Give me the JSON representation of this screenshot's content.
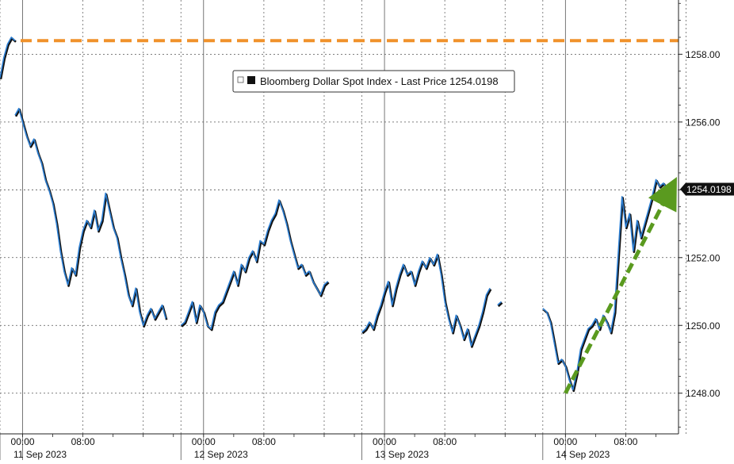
{
  "chart_data": {
    "type": "line",
    "legend": {
      "label": "Bloomberg Dollar Spot Index - Last Price 1254.0198",
      "placement": "top-center"
    },
    "last_price_label": "1254.0198",
    "y_axis": {
      "ticks": [
        1248.0,
        1250.0,
        1252.0,
        1254.0,
        1256.0,
        1258.0
      ],
      "tick_labels": [
        "1248.00",
        "1250.00",
        "1252.00",
        "1254.00",
        "1256.00",
        "1258.00"
      ],
      "ylim": [
        1246.8,
        1259.6
      ],
      "position": "right"
    },
    "x_axis": {
      "time_labels": [
        "00:00",
        "08:00",
        "00:00",
        "08:00",
        "00:00",
        "08:00",
        "00:00",
        "08:00"
      ],
      "date_labels": [
        "11 Sep 2023",
        "12 Sep 2023",
        "13 Sep 2023",
        "14 Sep 2023"
      ],
      "xlim": [
        "10 Sep 2023 21:00",
        "14 Sep 2023 15:00"
      ]
    },
    "grid": true,
    "reference_line": {
      "y": 1258.4,
      "style": "dashed",
      "color": "#f0922b"
    },
    "trend_arrow": {
      "from": [
        "14 Sep 2023 00:00",
        1248.0
      ],
      "to": [
        "14 Sep 2023 14:00",
        1254.0
      ],
      "style": "dashed",
      "color": "#5a9a1f"
    },
    "series": [
      {
        "color": "#2d7fd3",
        "segments": [
          [
            [
              "10 Sep 2023 21:00",
              1257.3
            ],
            [
              "10 Sep 2023 21:30",
              1257.9
            ],
            [
              "10 Sep 2023 22:00",
              1258.3
            ],
            [
              "10 Sep 2023 22:30",
              1258.5
            ],
            [
              "10 Sep 2023 23:00",
              1258.4
            ]
          ],
          [
            [
              "10 Sep 2023 23:00",
              1256.2
            ],
            [
              "10 Sep 2023 23:30",
              1256.4
            ],
            [
              "11 Sep 2023 00:00",
              1256.0
            ],
            [
              "11 Sep 2023 00:30",
              1255.6
            ],
            [
              "11 Sep 2023 01:00",
              1255.3
            ],
            [
              "11 Sep 2023 01:30",
              1255.5
            ],
            [
              "11 Sep 2023 02:00",
              1255.1
            ],
            [
              "11 Sep 2023 02:30",
              1254.8
            ],
            [
              "11 Sep 2023 03:00",
              1254.3
            ],
            [
              "11 Sep 2023 03:30",
              1254.0
            ],
            [
              "11 Sep 2023 04:00",
              1253.6
            ],
            [
              "11 Sep 2023 04:30",
              1253.0
            ],
            [
              "11 Sep 2023 05:00",
              1252.2
            ],
            [
              "11 Sep 2023 05:30",
              1251.6
            ],
            [
              "11 Sep 2023 06:00",
              1251.2
            ],
            [
              "11 Sep 2023 06:30",
              1251.7
            ],
            [
              "11 Sep 2023 07:00",
              1251.5
            ],
            [
              "11 Sep 2023 07:30",
              1252.3
            ],
            [
              "11 Sep 2023 08:00",
              1252.8
            ],
            [
              "11 Sep 2023 08:30",
              1253.1
            ],
            [
              "11 Sep 2023 09:00",
              1252.9
            ],
            [
              "11 Sep 2023 09:30",
              1253.4
            ],
            [
              "11 Sep 2023 10:00",
              1252.8
            ],
            [
              "11 Sep 2023 10:30",
              1253.1
            ],
            [
              "11 Sep 2023 11:00",
              1253.9
            ],
            [
              "11 Sep 2023 11:30",
              1253.4
            ],
            [
              "11 Sep 2023 12:00",
              1252.9
            ],
            [
              "11 Sep 2023 12:30",
              1252.6
            ],
            [
              "11 Sep 2023 13:00",
              1252.0
            ],
            [
              "11 Sep 2023 13:30",
              1251.5
            ],
            [
              "11 Sep 2023 14:00",
              1250.9
            ],
            [
              "11 Sep 2023 14:30",
              1250.6
            ],
            [
              "11 Sep 2023 15:00",
              1251.1
            ],
            [
              "11 Sep 2023 15:30",
              1250.4
            ],
            [
              "11 Sep 2023 16:00",
              1250.0
            ],
            [
              "11 Sep 2023 16:30",
              1250.3
            ],
            [
              "11 Sep 2023 17:00",
              1250.5
            ],
            [
              "11 Sep 2023 17:30",
              1250.2
            ],
            [
              "11 Sep 2023 18:00",
              1250.4
            ],
            [
              "11 Sep 2023 18:30",
              1250.6
            ],
            [
              "11 Sep 2023 19:00",
              1250.2
            ]
          ],
          [
            [
              "11 Sep 2023 21:00",
              1250.0
            ],
            [
              "11 Sep 2023 21:30",
              1250.1
            ],
            [
              "11 Sep 2023 22:00",
              1250.4
            ],
            [
              "11 Sep 2023 22:30",
              1250.7
            ],
            [
              "11 Sep 2023 23:00",
              1250.1
            ],
            [
              "11 Sep 2023 23:30",
              1250.6
            ],
            [
              "12 Sep 2023 00:00",
              1250.4
            ],
            [
              "12 Sep 2023 00:30",
              1250.0
            ],
            [
              "12 Sep 2023 01:00",
              1249.9
            ],
            [
              "12 Sep 2023 01:30",
              1250.4
            ],
            [
              "12 Sep 2023 02:00",
              1250.6
            ],
            [
              "12 Sep 2023 02:30",
              1250.7
            ],
            [
              "12 Sep 2023 03:00",
              1251.0
            ],
            [
              "12 Sep 2023 03:30",
              1251.3
            ],
            [
              "12 Sep 2023 04:00",
              1251.6
            ],
            [
              "12 Sep 2023 04:30",
              1251.2
            ],
            [
              "12 Sep 2023 05:00",
              1251.8
            ],
            [
              "12 Sep 2023 05:30",
              1251.6
            ],
            [
              "12 Sep 2023 06:00",
              1252.0
            ],
            [
              "12 Sep 2023 06:30",
              1252.2
            ],
            [
              "12 Sep 2023 07:00",
              1251.9
            ],
            [
              "12 Sep 2023 07:30",
              1252.5
            ],
            [
              "12 Sep 2023 08:00",
              1252.4
            ],
            [
              "12 Sep 2023 08:30",
              1252.8
            ],
            [
              "12 Sep 2023 09:00",
              1253.1
            ],
            [
              "12 Sep 2023 09:30",
              1253.3
            ],
            [
              "12 Sep 2023 10:00",
              1253.7
            ],
            [
              "12 Sep 2023 10:30",
              1253.4
            ],
            [
              "12 Sep 2023 11:00",
              1253.0
            ],
            [
              "12 Sep 2023 11:30",
              1252.5
            ],
            [
              "12 Sep 2023 12:00",
              1252.1
            ],
            [
              "12 Sep 2023 12:30",
              1251.7
            ],
            [
              "12 Sep 2023 13:00",
              1251.8
            ],
            [
              "12 Sep 2023 13:30",
              1251.5
            ],
            [
              "12 Sep 2023 14:00",
              1251.6
            ],
            [
              "12 Sep 2023 14:30",
              1251.3
            ],
            [
              "12 Sep 2023 15:00",
              1251.1
            ],
            [
              "12 Sep 2023 15:30",
              1250.9
            ],
            [
              "12 Sep 2023 16:00",
              1251.2
            ],
            [
              "12 Sep 2023 16:30",
              1251.3
            ]
          ],
          [
            [
              "12 Sep 2023 21:00",
              1249.8
            ],
            [
              "12 Sep 2023 21:30",
              1249.9
            ],
            [
              "12 Sep 2023 22:00",
              1250.1
            ],
            [
              "12 Sep 2023 22:30",
              1249.9
            ],
            [
              "12 Sep 2023 23:00",
              1250.3
            ],
            [
              "12 Sep 2023 23:30",
              1250.6
            ],
            [
              "13 Sep 2023 00:00",
              1251.0
            ],
            [
              "13 Sep 2023 00:30",
              1251.3
            ],
            [
              "13 Sep 2023 01:00",
              1250.6
            ],
            [
              "13 Sep 2023 01:30",
              1251.1
            ],
            [
              "13 Sep 2023 02:00",
              1251.5
            ],
            [
              "13 Sep 2023 02:30",
              1251.8
            ],
            [
              "13 Sep 2023 03:00",
              1251.5
            ],
            [
              "13 Sep 2023 03:30",
              1251.6
            ],
            [
              "13 Sep 2023 04:00",
              1251.2
            ],
            [
              "13 Sep 2023 04:30",
              1251.6
            ],
            [
              "13 Sep 2023 05:00",
              1251.9
            ],
            [
              "13 Sep 2023 05:30",
              1251.7
            ],
            [
              "13 Sep 2023 06:00",
              1252.0
            ],
            [
              "13 Sep 2023 06:30",
              1251.8
            ],
            [
              "13 Sep 2023 07:00",
              1252.1
            ],
            [
              "13 Sep 2023 07:30",
              1251.5
            ],
            [
              "13 Sep 2023 08:00",
              1250.7
            ],
            [
              "13 Sep 2023 08:30",
              1250.2
            ],
            [
              "13 Sep 2023 09:00",
              1249.8
            ],
            [
              "13 Sep 2023 09:30",
              1250.3
            ],
            [
              "13 Sep 2023 10:00",
              1250.0
            ],
            [
              "13 Sep 2023 10:30",
              1249.6
            ],
            [
              "13 Sep 2023 11:00",
              1249.9
            ],
            [
              "13 Sep 2023 11:30",
              1249.4
            ],
            [
              "13 Sep 2023 12:00",
              1249.7
            ],
            [
              "13 Sep 2023 12:30",
              1250.0
            ],
            [
              "13 Sep 2023 13:00",
              1250.4
            ],
            [
              "13 Sep 2023 13:30",
              1250.9
            ],
            [
              "13 Sep 2023 14:00",
              1251.1
            ]
          ],
          [
            [
              "13 Sep 2023 15:00",
              1250.6
            ],
            [
              "13 Sep 2023 15:30",
              1250.7
            ]
          ],
          [
            [
              "13 Sep 2023 21:00",
              1250.5
            ],
            [
              "13 Sep 2023 21:30",
              1250.4
            ],
            [
              "13 Sep 2023 22:00",
              1250.1
            ],
            [
              "13 Sep 2023 22:30",
              1249.5
            ],
            [
              "13 Sep 2023 23:00",
              1248.9
            ],
            [
              "13 Sep 2023 23:30",
              1249.0
            ],
            [
              "14 Sep 2023 00:00",
              1248.8
            ],
            [
              "14 Sep 2023 00:30",
              1248.4
            ],
            [
              "14 Sep 2023 01:00",
              1248.1
            ],
            [
              "14 Sep 2023 01:30",
              1248.6
            ],
            [
              "14 Sep 2023 02:00",
              1249.3
            ],
            [
              "14 Sep 2023 02:30",
              1249.6
            ],
            [
              "14 Sep 2023 03:00",
              1249.9
            ],
            [
              "14 Sep 2023 03:30",
              1250.0
            ],
            [
              "14 Sep 2023 04:00",
              1250.2
            ],
            [
              "14 Sep 2023 04:30",
              1249.9
            ],
            [
              "14 Sep 2023 05:00",
              1250.3
            ],
            [
              "14 Sep 2023 05:30",
              1250.1
            ],
            [
              "14 Sep 2023 06:00",
              1249.8
            ],
            [
              "14 Sep 2023 06:30",
              1250.4
            ],
            [
              "14 Sep 2023 07:00",
              1252.1
            ],
            [
              "14 Sep 2023 07:30",
              1253.8
            ],
            [
              "14 Sep 2023 08:00",
              1252.9
            ],
            [
              "14 Sep 2023 08:30",
              1253.3
            ],
            [
              "14 Sep 2023 09:00",
              1252.2
            ],
            [
              "14 Sep 2023 09:30",
              1253.1
            ],
            [
              "14 Sep 2023 10:00",
              1252.6
            ],
            [
              "14 Sep 2023 10:30",
              1253.0
            ],
            [
              "14 Sep 2023 11:00",
              1253.4
            ],
            [
              "14 Sep 2023 11:30",
              1253.8
            ],
            [
              "14 Sep 2023 12:00",
              1254.3
            ],
            [
              "14 Sep 2023 12:30",
              1254.1
            ],
            [
              "14 Sep 2023 13:00",
              1254.2
            ],
            [
              "14 Sep 2023 13:30",
              1254.0
            ]
          ]
        ]
      }
    ]
  }
}
